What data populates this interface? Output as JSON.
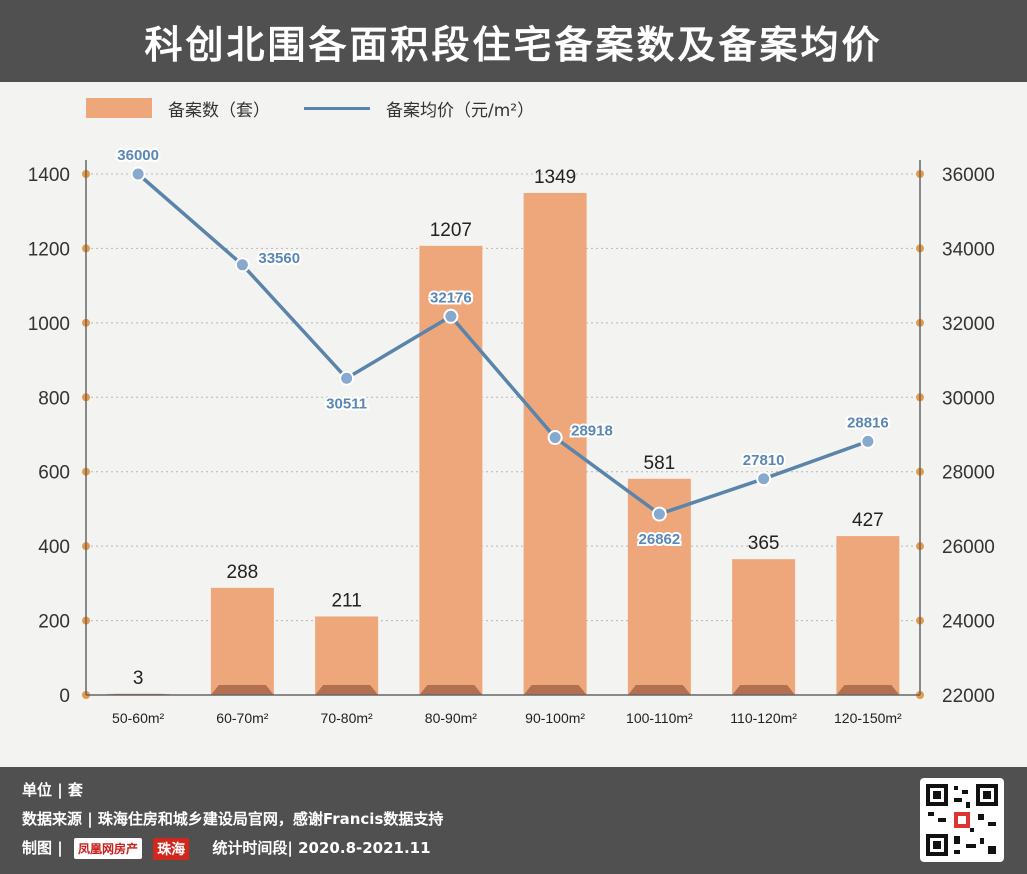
{
  "title": "科创北围各面积段住宅备案数及备案均价",
  "legend": {
    "bar_label": "备案数（套）",
    "line_label": "备案均价（元/m²）"
  },
  "colors": {
    "bar": "#eea77a",
    "bar_dark": "#b27050",
    "line": "#5b84ab",
    "header_bg": "#505050",
    "tick_dot": "#e49a48"
  },
  "chart_data": {
    "type": "bar",
    "categories": [
      "50-60m²",
      "60-70m²",
      "70-80m²",
      "80-90m²",
      "90-100m²",
      "100-110m²",
      "110-120m²",
      "120-150m²"
    ],
    "series": [
      {
        "name": "备案数（套）",
        "type": "bar",
        "axis": "left",
        "values": [
          3,
          288,
          211,
          1207,
          1349,
          581,
          365,
          427
        ]
      },
      {
        "name": "备案均价（元/m²）",
        "type": "line",
        "axis": "right",
        "values": [
          36000,
          33560,
          30511,
          32176,
          28918,
          26862,
          27810,
          28816
        ]
      }
    ],
    "y_left": {
      "ticks": [
        0,
        200,
        400,
        600,
        800,
        1000,
        1200,
        1400
      ],
      "range": [
        0,
        1400
      ]
    },
    "y_right": {
      "ticks": [
        22000,
        24000,
        26000,
        28000,
        30000,
        32000,
        34000,
        36000
      ],
      "range": [
        22000,
        36000
      ]
    },
    "grid": "horizontal dashed",
    "legend_position": "top-left"
  },
  "footer": {
    "unit_label": "单位 | 套",
    "source_label": "数据来源 | 珠海住房和城乡建设局官网，感谢Francis数据支持",
    "made_by_label": "制图 |",
    "brand_name": "凤凰网房产",
    "brand_city": "珠海",
    "period_label": "统计时间段| 2020.8-2021.11"
  }
}
